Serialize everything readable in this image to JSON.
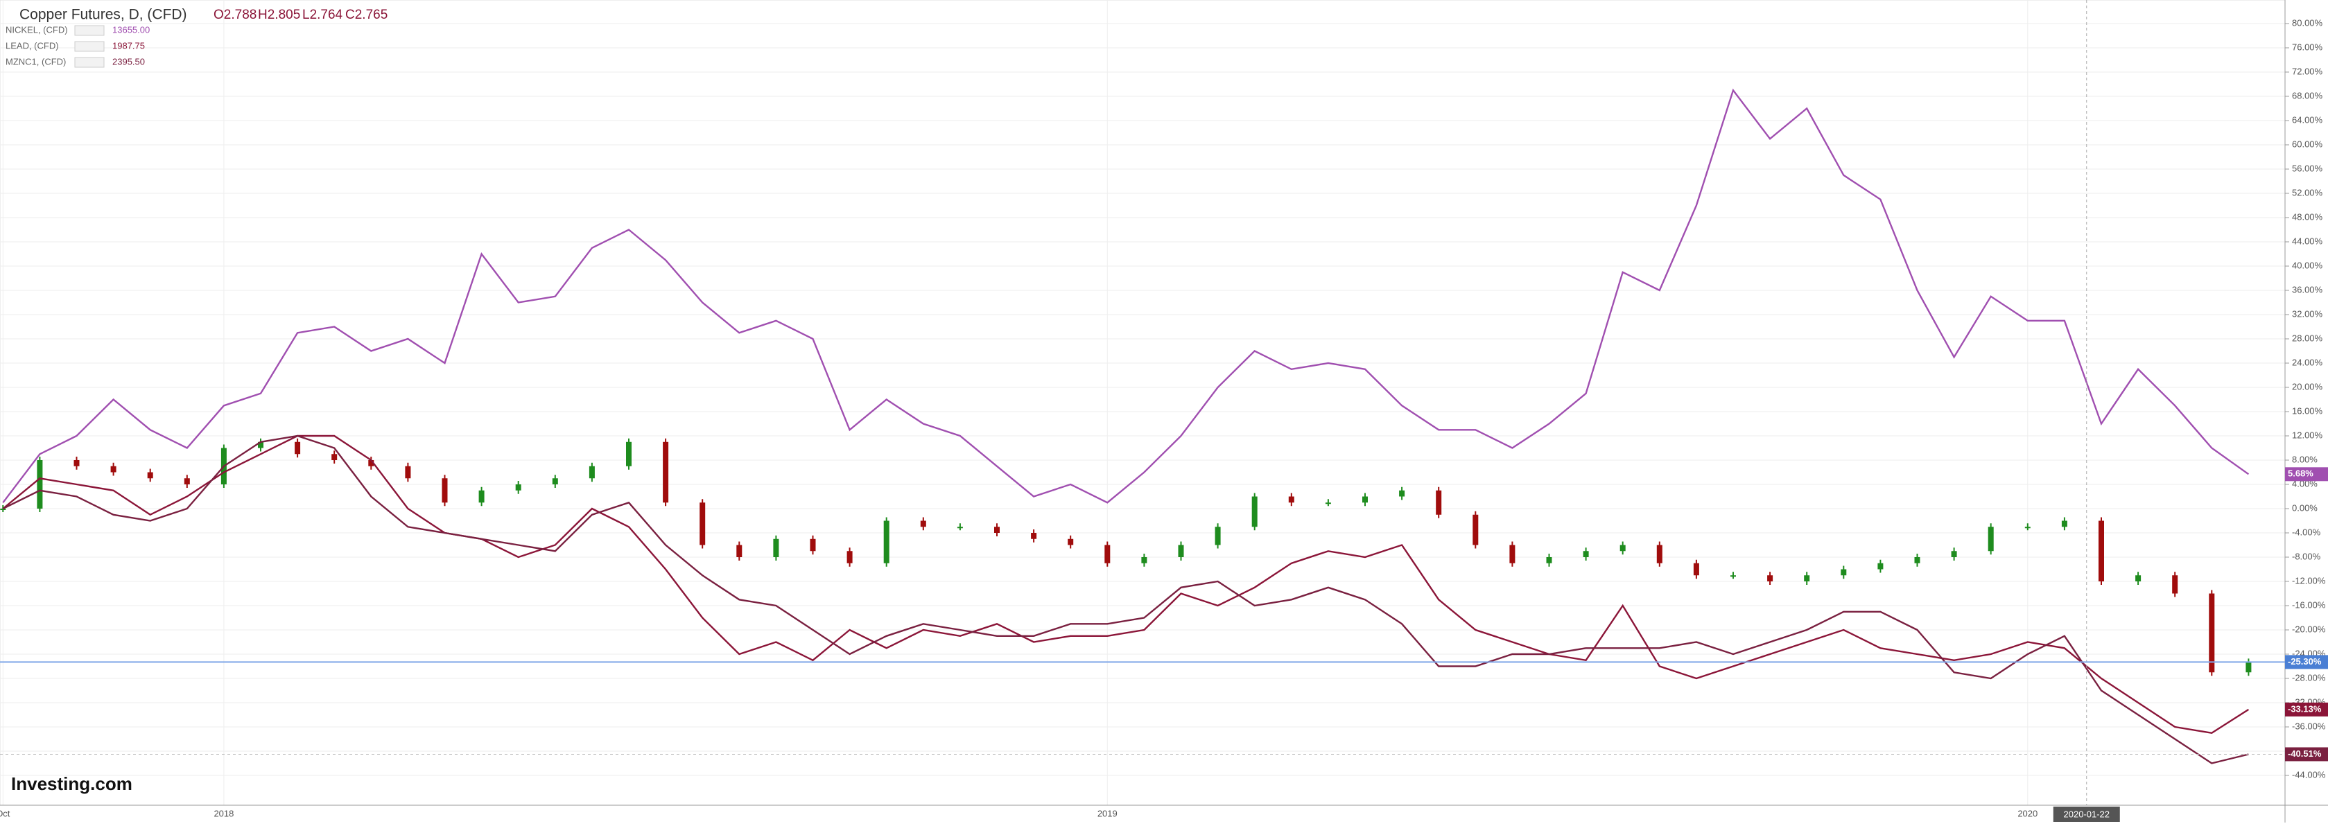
{
  "header": {
    "title": "Copper Futures, D, (CFD)",
    "ohlc": [
      "O2.788",
      "H2.805",
      "L2.764",
      "C2.765"
    ]
  },
  "chart_data": {
    "type": "line",
    "categories": [
      "Oct",
      null,
      null,
      null,
      null,
      null,
      "2018",
      null,
      null,
      null,
      null,
      null,
      null,
      null,
      null,
      null,
      null,
      null,
      null,
      null,
      null,
      null,
      null,
      null,
      null,
      null,
      null,
      null,
      null,
      null,
      "2019",
      null,
      null,
      null,
      null,
      null,
      null,
      null,
      null,
      null,
      null,
      null,
      null,
      null,
      null,
      null,
      null,
      null,
      null,
      null,
      null,
      null,
      null,
      null,
      null,
      "2020",
      null,
      null,
      null,
      null,
      null,
      null
    ],
    "crosshair_label": "2020-01-22",
    "series": [
      {
        "name": "Copper Futures",
        "kind": "candle",
        "color": "#1e8c1e",
        "down_color": "#a00c0c",
        "last_value_label": "-25.30%",
        "values": [
          0,
          8,
          7,
          6,
          5,
          4,
          10,
          11,
          9,
          8,
          7,
          5,
          1,
          3,
          4,
          5,
          7,
          11,
          1,
          -6,
          -8,
          -5,
          -7,
          -9,
          -2,
          -3,
          -3,
          -4,
          -5,
          -6,
          -9,
          -8,
          -6,
          -3,
          2,
          1,
          1,
          2,
          3,
          -1,
          -6,
          -9,
          -8,
          -7,
          -6,
          -9,
          -11,
          -11,
          -12,
          -11,
          -10,
          -9,
          -8,
          -7,
          -3,
          -3,
          -2,
          -12,
          -11,
          -14,
          -27,
          -25.3
        ]
      },
      {
        "name": "NICKEL, (CFD)",
        "last_price": "13655.00",
        "color": "#a04fb0",
        "last_value_label": "5.68%",
        "values": [
          1,
          9,
          12,
          18,
          13,
          10,
          17,
          19,
          29,
          30,
          26,
          28,
          24,
          42,
          34,
          35,
          43,
          46,
          41,
          34,
          29,
          31,
          28,
          13,
          18,
          14,
          12,
          7,
          2,
          4,
          1,
          6,
          12,
          20,
          26,
          23,
          24,
          23,
          17,
          13,
          13,
          10,
          14,
          19,
          39,
          36,
          50,
          69,
          61,
          66,
          55,
          51,
          36,
          25,
          35,
          31,
          31,
          14,
          23,
          17,
          10,
          5.68
        ]
      },
      {
        "name": "LEAD, (CFD)",
        "last_price": "1987.75",
        "color": "#8b1538",
        "last_value_label": "-33.13%",
        "values": [
          0,
          5,
          4,
          3,
          -1,
          2,
          6,
          9,
          12,
          12,
          8,
          0,
          -4,
          -5,
          -8,
          -6,
          0,
          -3,
          -10,
          -18,
          -24,
          -22,
          -25,
          -20,
          -23,
          -20,
          -21,
          -19,
          -22,
          -21,
          -21,
          -20,
          -14,
          -16,
          -13,
          -9,
          -7,
          -8,
          -6,
          -15,
          -20,
          -22,
          -24,
          -25,
          -16,
          -26,
          -28,
          -26,
          -24,
          -22,
          -20,
          -23,
          -24,
          -25,
          -24,
          -22,
          -23,
          -28,
          -32,
          -36,
          -37,
          -33.13
        ]
      },
      {
        "name": "MZNC1, (CFD)",
        "last_price": "2395.50",
        "color": "#7a2040",
        "last_value_label": "-40.51%",
        "values": [
          0,
          3,
          2,
          -1,
          -2,
          0,
          7,
          11,
          12,
          10,
          2,
          -3,
          -4,
          -5,
          -6,
          -7,
          -1,
          1,
          -6,
          -11,
          -15,
          -16,
          -20,
          -24,
          -21,
          -19,
          -20,
          -21,
          -21,
          -19,
          -19,
          -18,
          -13,
          -12,
          -16,
          -15,
          -13,
          -15,
          -19,
          -26,
          -26,
          -24,
          -24,
          -23,
          -23,
          -23,
          -22,
          -24,
          -22,
          -20,
          -17,
          -17,
          -20,
          -27,
          -28,
          -24,
          -21,
          -30,
          -34,
          -38,
          -42,
          -40.51
        ]
      }
    ],
    "ylim": [
      -46,
      82
    ],
    "yticks": [
      {
        "value": 80,
        "label": "80.00%"
      },
      {
        "value": 76,
        "label": "76.00%"
      },
      {
        "value": 72,
        "label": "72.00%"
      },
      {
        "value": 68,
        "label": "68.00%"
      },
      {
        "value": 64,
        "label": "64.00%"
      },
      {
        "value": 60,
        "label": "60.00%"
      },
      {
        "value": 56,
        "label": "56.00%"
      },
      {
        "value": 52,
        "label": "52.00%"
      },
      {
        "value": 48,
        "label": "48.00%"
      },
      {
        "value": 44,
        "label": "44.00%"
      },
      {
        "value": 40,
        "label": "40.00%"
      },
      {
        "value": 36,
        "label": "36.00%"
      },
      {
        "value": 32,
        "label": "32.00%"
      },
      {
        "value": 28,
        "label": "28.00%"
      },
      {
        "value": 24,
        "label": "24.00%"
      },
      {
        "value": 20,
        "label": "20.00%"
      },
      {
        "value": 16,
        "label": "16.00%"
      },
      {
        "value": 12,
        "label": "12.00%"
      },
      {
        "value": 8,
        "label": "8.00%"
      },
      {
        "value": 4,
        "label": "4.00%"
      },
      {
        "value": 0,
        "label": "0.00%"
      },
      {
        "value": -4,
        "label": "-4.00%"
      },
      {
        "value": -8,
        "label": "-8.00%"
      },
      {
        "value": -12,
        "label": "-12.00%"
      },
      {
        "value": -16,
        "label": "-16.00%"
      },
      {
        "value": -20,
        "label": "-20.00%"
      },
      {
        "value": -24,
        "label": "-24.00%"
      },
      {
        "value": -28,
        "label": "-28.00%"
      },
      {
        "value": -32,
        "label": "-32.00%"
      },
      {
        "value": -36,
        "label": "-36.00%"
      },
      {
        "value": -40,
        "label": "-40.00%"
      },
      {
        "value": -44,
        "label": "-44.00%"
      }
    ],
    "grid": true,
    "watermark": "Investing.com"
  }
}
